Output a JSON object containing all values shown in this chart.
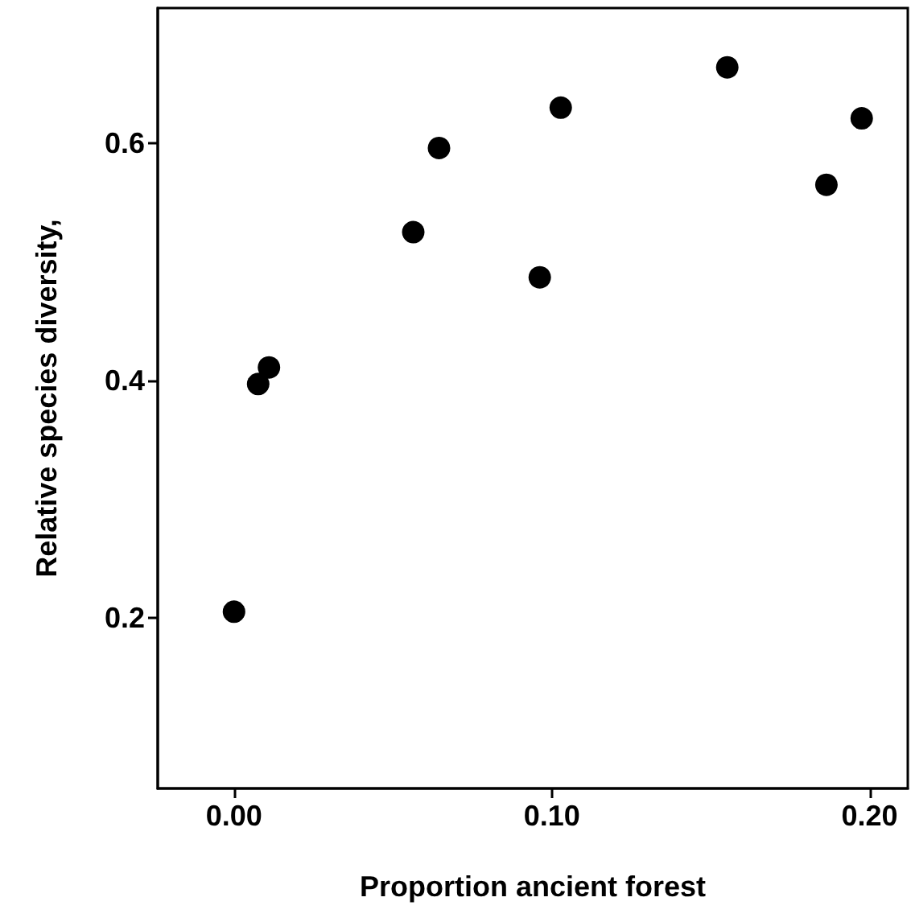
{
  "chart_data": {
    "type": "scatter",
    "xlabel": "Proportion ancient forest",
    "ylabel": "Relative species diversity,",
    "x": [
      0.0,
      0.0076,
      0.011,
      0.0564,
      0.0645,
      0.0962,
      0.1028,
      0.1552,
      0.1864,
      0.1975
    ],
    "series": [
      {
        "color": "#000000",
        "values": [
          0.205,
          0.397,
          0.411,
          0.525,
          0.596,
          0.487,
          0.63,
          0.664,
          0.565,
          0.621
        ]
      }
    ],
    "xlim": [
      -0.024,
      0.212
    ],
    "ylim": [
      0.056,
      0.714
    ],
    "xticks": [
      {
        "value": 0,
        "label": "0.00"
      },
      {
        "value": 0.1,
        "label": "0.10"
      },
      {
        "value": 0.2,
        "label": "0.20"
      }
    ],
    "yticks": [
      {
        "value": 0.2,
        "label": "0.2"
      },
      {
        "value": 0.4,
        "label": "0.4"
      },
      {
        "value": 0.6,
        "label": "0.6"
      }
    ],
    "grid": false,
    "marker": "circle"
  }
}
